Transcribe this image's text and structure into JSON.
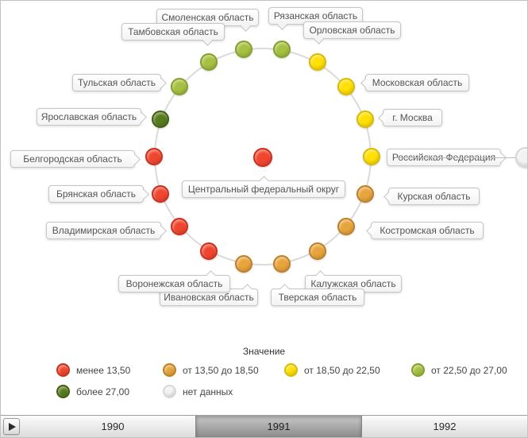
{
  "chart_data": {
    "type": "circular-node-status-map",
    "description": "Regions of the Central Federal District arranged on a ring around the district node, colored by value bucket; Russian Federation node at right edge",
    "center_node": {
      "label": "Центральный федеральный округ",
      "color": "red",
      "bucket": "менее 13,50"
    },
    "nodes": [
      {
        "label": "Смоленская область",
        "color": "yellowgreen",
        "bucket": "от 22,50 до 27,00"
      },
      {
        "label": "Рязанская область",
        "color": "yellowgreen",
        "bucket": "от 22,50 до 27,00"
      },
      {
        "label": "Орловская область",
        "color": "yellow",
        "bucket": "от 18,50 до 22,50"
      },
      {
        "label": "Московская область",
        "color": "yellow",
        "bucket": "от 18,50 до 22,50"
      },
      {
        "label": "г. Москва",
        "color": "yellow",
        "bucket": "от 18,50 до 22,50"
      },
      {
        "label": "",
        "color": "yellow",
        "bucket": "от 18,50 до 22,50"
      },
      {
        "label": "Курская область",
        "color": "orange",
        "bucket": "от 13,50 до 18,50"
      },
      {
        "label": "Костромская область",
        "color": "orange",
        "bucket": "от 13,50 до 18,50"
      },
      {
        "label": "Калужская область",
        "color": "orange",
        "bucket": "от 13,50 до 18,50"
      },
      {
        "label": "Тверская область",
        "color": "orange",
        "bucket": "от 13,50 до 18,50"
      },
      {
        "label": "Ивановская область",
        "color": "orange",
        "bucket": "от 13,50 до 18,50"
      },
      {
        "label": "Воронежская область",
        "color": "red",
        "bucket": "менее 13,50"
      },
      {
        "label": "Владимирская область",
        "color": "red",
        "bucket": "менее 13,50"
      },
      {
        "label": "Брянская область",
        "color": "red",
        "bucket": "менее 13,50"
      },
      {
        "label": "Белгородская область",
        "color": "red",
        "bucket": "менее 13,50"
      },
      {
        "label": "Ярославская область",
        "color": "green",
        "bucket": "более 27,00"
      },
      {
        "label": "Тульская область",
        "color": "yellowgreen",
        "bucket": "от 22,50 до 27,00"
      },
      {
        "label": "Тамбовская область",
        "color": "yellowgreen",
        "bucket": "от 22,50 до 27,00"
      }
    ],
    "outer_node": {
      "label": "Российская Федерация",
      "color": "nodata",
      "bucket": "нет данных"
    }
  },
  "colors": {
    "red": {
      "fill": "#F0462F",
      "border": "#CD2F1B"
    },
    "orange": {
      "fill": "#E8A43C",
      "border": "#C07F24"
    },
    "yellow": {
      "fill": "#FFE000",
      "border": "#DBBA00"
    },
    "yellowgreen": {
      "fill": "#A6C040",
      "border": "#85A02A"
    },
    "green": {
      "fill": "#567B1E",
      "border": "#435F16"
    },
    "nodata": {
      "fill": "#F2F2F2",
      "border": "#D8D8D8"
    }
  },
  "legend": {
    "title": "Значение",
    "items": [
      {
        "color": "red",
        "label": "менее 13,50"
      },
      {
        "color": "orange",
        "label": "от 13,50 до 18,50"
      },
      {
        "color": "yellow",
        "label": "от 18,50 до 22,50"
      },
      {
        "color": "yellowgreen",
        "label": "от 22,50 до 27,00"
      },
      {
        "color": "green",
        "label": "более 27,00"
      },
      {
        "color": "nodata",
        "label": "нет данных"
      }
    ]
  },
  "timeline": {
    "years": [
      "1990",
      "1991",
      "1992"
    ],
    "selected_year": "1991",
    "play_button_icon": "play-icon"
  }
}
